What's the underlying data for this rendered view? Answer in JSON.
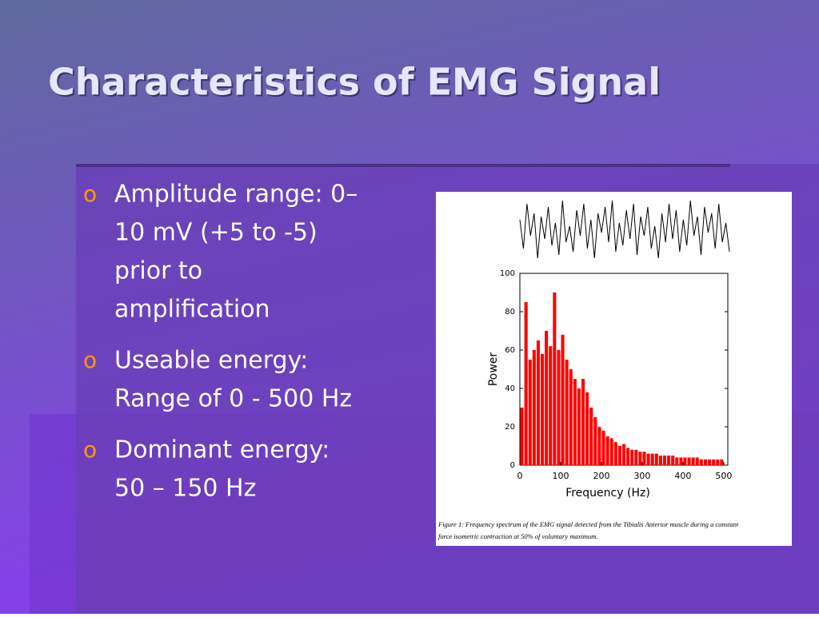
{
  "slide": {
    "title": "Characteristics of EMG Signal",
    "bullets": [
      {
        "marker": "o",
        "lines": [
          "Amplitude range: 0–",
          "10 mV (+5 to -5)",
          "prior to",
          "amplification"
        ]
      },
      {
        "marker": "o",
        "lines": [
          "Useable energy:",
          "Range of 0 - 500 Hz"
        ]
      },
      {
        "marker": "o",
        "lines": [
          "Dominant energy:",
          "50 – 150 Hz"
        ]
      }
    ]
  },
  "signal": [
    0.3,
    -0.6,
    0.8,
    -0.2,
    0.5,
    -0.9,
    0.4,
    -0.3,
    0.7,
    -0.5,
    0.2,
    -0.8,
    0.9,
    -0.4,
    0.1,
    -0.7,
    0.6,
    -0.2,
    0.8,
    -0.6,
    0.3,
    -0.9,
    0.5,
    -0.1,
    0.7,
    -0.4,
    0.9,
    -0.7,
    0.2,
    -0.5,
    0.6,
    -0.3,
    0.8,
    -0.8,
    0.4,
    -0.2,
    0.7,
    -0.6,
    0.1,
    -0.9,
    0.5,
    -0.4,
    0.8,
    -0.3,
    0.6,
    -0.7,
    0.3,
    -0.5,
    0.9,
    -0.2,
    0.4,
    -0.8,
    0.7,
    -0.1,
    0.5,
    -0.6,
    0.8,
    -0.4,
    0.2,
    -0.7
  ],
  "chart_data": {
    "type": "bar",
    "xlabel": "Frequency (Hz)",
    "ylabel": "Power",
    "x": [
      5,
      15,
      25,
      35,
      45,
      55,
      65,
      75,
      85,
      95,
      105,
      115,
      125,
      135,
      145,
      155,
      165,
      175,
      185,
      195,
      205,
      215,
      225,
      235,
      245,
      255,
      265,
      275,
      285,
      295,
      305,
      315,
      325,
      335,
      345,
      355,
      365,
      375,
      385,
      395,
      405,
      415,
      425,
      435,
      445,
      455,
      465,
      475,
      485,
      495
    ],
    "values": [
      30,
      85,
      55,
      60,
      65,
      58,
      70,
      62,
      90,
      60,
      68,
      55,
      50,
      45,
      40,
      45,
      38,
      30,
      25,
      20,
      18,
      15,
      14,
      12,
      10,
      11,
      9,
      8,
      8,
      7,
      7,
      6,
      6,
      6,
      5,
      5,
      5,
      5,
      4,
      4,
      4,
      4,
      4,
      4,
      3,
      3,
      3,
      3,
      3,
      3
    ],
    "color": "#ff0000",
    "xlim": [
      0,
      510
    ],
    "ylim": [
      0,
      100
    ],
    "xticks": [
      0,
      100,
      200,
      300,
      400,
      500
    ],
    "yticks": [
      0,
      20,
      40,
      60,
      80,
      100
    ],
    "caption": [
      "Figure 1:  Frequency spectrum of the EMG signal detected from the Tibialis Anterior muscle during a constant",
      "force isometric contraction at 50% of voluntary maximum."
    ]
  }
}
